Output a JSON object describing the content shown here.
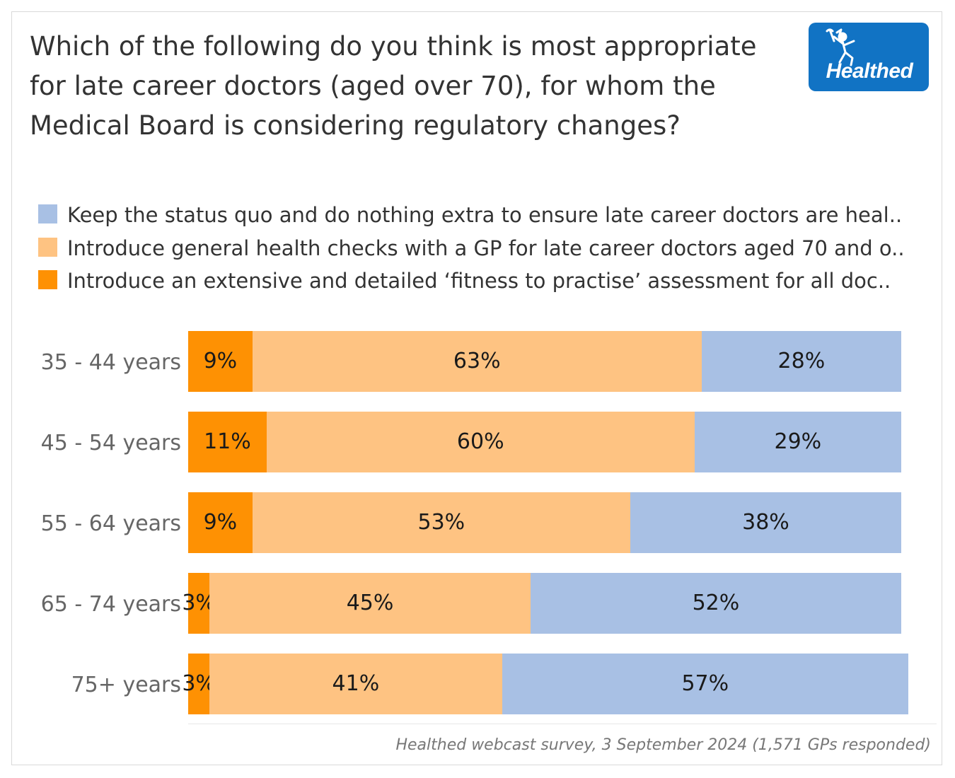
{
  "title": "Which of the following do you think is most appropriate for late career doctors (aged over 70), for whom the Medical Board is considering regulatory changes?",
  "logo": {
    "text": "Healthed",
    "icon": "hermes-figure-icon"
  },
  "legend": [
    {
      "label": "Keep the status quo and do nothing extra to ensure late career doctors are heal..",
      "color": "#a8c0e4"
    },
    {
      "label": "Introduce general health checks with a GP for late career doctors aged 70 and o..",
      "color": "#fec382"
    },
    {
      "label": "Introduce an extensive and detailed ‘fitness to practise’ assessment for all doc..",
      "color": "#fe9103"
    }
  ],
  "source": "Healthed webcast survey, 3 September 2024 (1,571 GPs responded)",
  "chart_data": {
    "type": "bar",
    "orientation": "horizontal",
    "stacked": true,
    "title": "Which of the following do you think is most appropriate for late career doctors (aged over 70), for whom the Medical Board is considering regulatory changes?",
    "categories": [
      "35 - 44 years",
      "45 - 54 years",
      "55 - 64 years",
      "65 - 74 years",
      "75+ years"
    ],
    "series": [
      {
        "name": "Introduce an extensive and detailed ‘fitness to practise’ assessment for all doc..",
        "color": "#fe9103",
        "values": [
          9,
          11,
          9,
          3,
          3
        ]
      },
      {
        "name": "Introduce general health checks with a GP for late career doctors aged 70 and o..",
        "color": "#fec382",
        "values": [
          63,
          60,
          53,
          45,
          41
        ]
      },
      {
        "name": "Keep the status quo and do nothing extra to ensure late career doctors are heal..",
        "color": "#a8c0e4",
        "values": [
          28,
          29,
          38,
          52,
          57
        ]
      }
    ],
    "value_suffix": "%",
    "xlim": [
      0,
      100
    ],
    "legend_position": "top",
    "grid": false
  }
}
